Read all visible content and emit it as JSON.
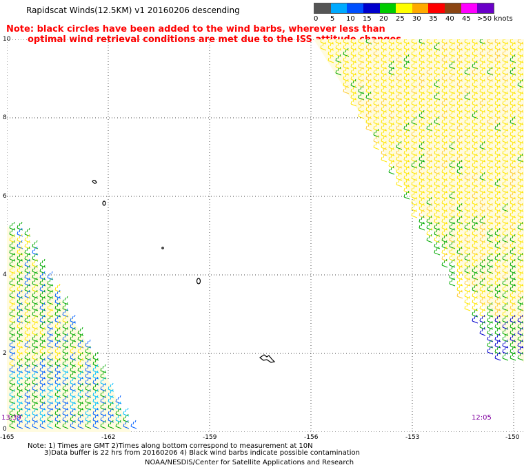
{
  "title": "Rapidscat Winds(12.5KM) v1 20160206 descending",
  "note_line1": "Note: black circles have been added to the wind barbs, wherever less than",
  "note_line2": "optimal wind retrieval conditions are met due to the ISS attitude changes.",
  "legend": {
    "labels": [
      "0",
      "5",
      "10",
      "15",
      "20",
      "25",
      "30",
      "35",
      "40",
      "45",
      ">50 knots"
    ],
    "colors": [
      "#555555",
      "#00aaff",
      "#0050ff",
      "#0000cc",
      "#00cc00",
      "#ffff00",
      "#ffaa00",
      "#ff0000",
      "#8b4513",
      "#ff00ff",
      "#6a00c8"
    ]
  },
  "axes": {
    "y_labels": [
      "10",
      "8",
      "6",
      "4",
      "2",
      "0"
    ],
    "x_labels": [
      "-165",
      "-162",
      "-159",
      "-156",
      "-153",
      "-150"
    ]
  },
  "times": {
    "left": "13:39",
    "right": "12:05"
  },
  "footer": {
    "line1": "Note: 1) Times are GMT 2)Times along bottom correspond to measurement at 10N",
    "line2": "3)Data buffer is 22 hrs from 20160206 4) Black wind barbs indicate possible contamination",
    "line3": "NOAA/NESDIS/Center for Satellite Applications and Research"
  }
}
